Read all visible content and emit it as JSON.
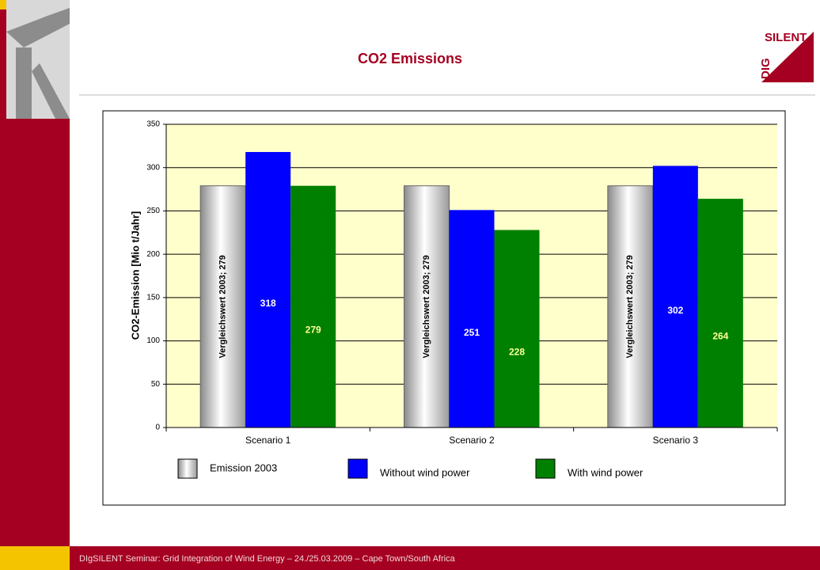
{
  "chart_data": {
    "type": "bar",
    "title": "CO2 Emissions",
    "y_label": "CO2-Emission [Mio t/Jahr]",
    "categories": [
      "Scenario 1",
      "Scenario 2",
      "Scenario 3"
    ],
    "series": [
      {
        "name": "Emission 2003",
        "color": "#c0c0c0",
        "values": [
          279,
          279,
          279
        ],
        "value_labels": [
          "Vergleichswert 2003; 279",
          "Vergleichswert 2003; 279",
          "Vergleichswert 2003; 279"
        ]
      },
      {
        "name": "Without wind power",
        "color": "#0000ff",
        "values": [
          318,
          251,
          302
        ]
      },
      {
        "name": "With wind power",
        "color": "#008000",
        "values": [
          279,
          228,
          264
        ]
      }
    ],
    "ylim": [
      0,
      350
    ],
    "yticks": [
      0,
      50,
      100,
      150,
      200,
      250,
      300,
      350
    ],
    "grid": true
  },
  "logo": {
    "top": "SILENT",
    "side": "DIG"
  },
  "footer": "DIgSILENT Seminar: Grid Integration of Wind Energy – 24./25.03.2009 – Cape Town/South Africa"
}
